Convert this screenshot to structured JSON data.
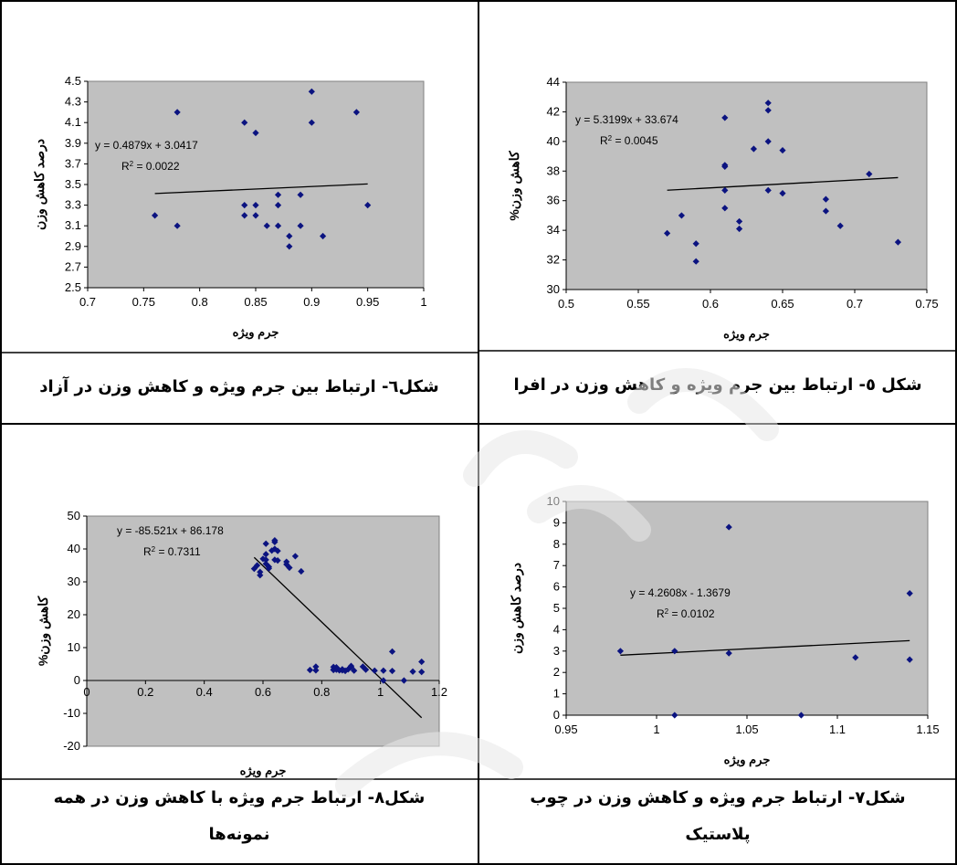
{
  "captions": {
    "p1": "شکل٦- ارتباط بین جرم ویژه و کاهش وزن در آزاد",
    "p2": "شکل ٥- ارتباط بین جرم ویژه و کاهش وزن در افرا",
    "p3_line1": "شکل٨- ارتباط جرم ویژه با کاهش وزن در همه",
    "p3_line2": "نمونه‌ها",
    "p4_line1": "شکل٧- ارتباط جرم ویژه و کاهش وزن در چوب",
    "p4_line2": "پلاستیک"
  },
  "chart_data": [
    {
      "id": "p1",
      "type": "scatter",
      "xlabel": "جرم ویژه",
      "ylabel": "درصد کاهش وزن",
      "xlim": [
        0.7,
        1
      ],
      "ylim": [
        2.5,
        4.5
      ],
      "xticks": [
        "0.7",
        "0.75",
        "0.8",
        "0.85",
        "0.9",
        "0.95",
        "1"
      ],
      "yticks": [
        "2.5",
        "2.7",
        "2.9",
        "3.1",
        "3.3",
        "3.5",
        "3.7",
        "3.9",
        "4.1",
        "4.3",
        "4.5"
      ],
      "trend_equation": "y = 0.4879x + 3.0417",
      "trend_r2_prefix": "R",
      "trend_r2_value": " = 0.0022",
      "trend": {
        "slope": 0.4879,
        "intercept": 3.0417,
        "x_start": 0.76,
        "x_end": 0.95
      },
      "points": [
        [
          0.76,
          3.2
        ],
        [
          0.78,
          4.2
        ],
        [
          0.78,
          3.1
        ],
        [
          0.84,
          4.1
        ],
        [
          0.84,
          3.3
        ],
        [
          0.84,
          3.2
        ],
        [
          0.85,
          4.0
        ],
        [
          0.85,
          3.3
        ],
        [
          0.85,
          3.2
        ],
        [
          0.86,
          3.1
        ],
        [
          0.87,
          3.4
        ],
        [
          0.87,
          3.3
        ],
        [
          0.87,
          3.1
        ],
        [
          0.88,
          3.0
        ],
        [
          0.88,
          2.9
        ],
        [
          0.89,
          3.4
        ],
        [
          0.89,
          3.1
        ],
        [
          0.9,
          4.4
        ],
        [
          0.9,
          4.1
        ],
        [
          0.91,
          3.0
        ],
        [
          0.94,
          4.2
        ],
        [
          0.95,
          3.3
        ]
      ]
    },
    {
      "id": "p2",
      "type": "scatter",
      "xlabel": "جرم ویژه",
      "ylabel": "کاهش وزن%",
      "xlim": [
        0.5,
        0.75
      ],
      "ylim": [
        30,
        44
      ],
      "xticks": [
        "0.5",
        "0.55",
        "0.6",
        "0.65",
        "0.7",
        "0.75"
      ],
      "yticks": [
        "30",
        "32",
        "34",
        "36",
        "38",
        "40",
        "42",
        "44"
      ],
      "trend_equation": "y = 5.3199x + 33.674",
      "trend_r2_prefix": "R",
      "trend_r2_value": " = 0.0045",
      "trend": {
        "slope": 5.3199,
        "intercept": 33.674,
        "x_start": 0.57,
        "x_end": 0.73
      },
      "points": [
        [
          0.57,
          33.8
        ],
        [
          0.58,
          35.0
        ],
        [
          0.59,
          33.1
        ],
        [
          0.59,
          31.9
        ],
        [
          0.61,
          41.6
        ],
        [
          0.61,
          38.4
        ],
        [
          0.61,
          38.3
        ],
        [
          0.61,
          36.7
        ],
        [
          0.61,
          35.5
        ],
        [
          0.62,
          34.6
        ],
        [
          0.62,
          34.1
        ],
        [
          0.63,
          39.5
        ],
        [
          0.64,
          42.6
        ],
        [
          0.64,
          42.1
        ],
        [
          0.64,
          40.0
        ],
        [
          0.64,
          36.7
        ],
        [
          0.65,
          39.4
        ],
        [
          0.65,
          36.5
        ],
        [
          0.68,
          36.1
        ],
        [
          0.68,
          35.3
        ],
        [
          0.69,
          34.3
        ],
        [
          0.71,
          37.8
        ],
        [
          0.73,
          33.2
        ]
      ]
    },
    {
      "id": "p3",
      "type": "scatter",
      "xlabel": "جرم ویژه",
      "ylabel": "کاهش وزن%",
      "xlim": [
        0,
        1.2
      ],
      "ylim": [
        -20,
        50
      ],
      "xticks": [
        "0",
        "0.2",
        "0.4",
        "0.6",
        "0.8",
        "1",
        "1.2"
      ],
      "yticks": [
        "-20",
        "-10",
        "0",
        "10",
        "20",
        "30",
        "40",
        "50"
      ],
      "trend_equation": "y = -85.521x + 86.178",
      "trend_r2_prefix": "R",
      "trend_r2_value": " = 0.7311",
      "trend": {
        "slope": -85.521,
        "intercept": 86.178,
        "x_start": 0.57,
        "x_end": 1.14
      },
      "points": [
        [
          0.57,
          34
        ],
        [
          0.58,
          35
        ],
        [
          0.59,
          33
        ],
        [
          0.59,
          32
        ],
        [
          0.6,
          37
        ],
        [
          0.61,
          41.6
        ],
        [
          0.61,
          38.4
        ],
        [
          0.61,
          36.7
        ],
        [
          0.61,
          35.5
        ],
        [
          0.62,
          34.6
        ],
        [
          0.62,
          34.1
        ],
        [
          0.63,
          39.5
        ],
        [
          0.64,
          42.6
        ],
        [
          0.64,
          42.1
        ],
        [
          0.64,
          40
        ],
        [
          0.64,
          36.7
        ],
        [
          0.65,
          39.4
        ],
        [
          0.65,
          36.5
        ],
        [
          0.68,
          36.1
        ],
        [
          0.68,
          35.3
        ],
        [
          0.69,
          34.3
        ],
        [
          0.71,
          37.8
        ],
        [
          0.73,
          33.2
        ],
        [
          0.76,
          3.2
        ],
        [
          0.78,
          4.2
        ],
        [
          0.78,
          3.1
        ],
        [
          0.84,
          4.1
        ],
        [
          0.84,
          3.3
        ],
        [
          0.84,
          3.2
        ],
        [
          0.85,
          4.0
        ],
        [
          0.85,
          3.3
        ],
        [
          0.86,
          3.1
        ],
        [
          0.87,
          3.4
        ],
        [
          0.87,
          3.1
        ],
        [
          0.88,
          3.0
        ],
        [
          0.88,
          2.9
        ],
        [
          0.89,
          3.4
        ],
        [
          0.9,
          4.4
        ],
        [
          0.9,
          4.1
        ],
        [
          0.91,
          3.0
        ],
        [
          0.94,
          4.2
        ],
        [
          0.95,
          3.3
        ],
        [
          0.98,
          3.0
        ],
        [
          1.01,
          3.0
        ],
        [
          1.01,
          0
        ],
        [
          1.04,
          8.8
        ],
        [
          1.04,
          2.9
        ],
        [
          1.08,
          0
        ],
        [
          1.11,
          2.7
        ],
        [
          1.14,
          5.7
        ],
        [
          1.14,
          2.6
        ]
      ]
    },
    {
      "id": "p4",
      "type": "scatter",
      "xlabel": "جرم ویژه",
      "ylabel": "درصد کاهش وزن",
      "xlim": [
        0.95,
        1.15
      ],
      "ylim": [
        0,
        10
      ],
      "xticks": [
        "0.95",
        "1",
        "1.05",
        "1.1",
        "1.15"
      ],
      "yticks": [
        "0",
        "1",
        "2",
        "3",
        "4",
        "5",
        "6",
        "7",
        "8",
        "9",
        "10"
      ],
      "trend_equation": "y = 4.2608x - 1.3679",
      "trend_r2_prefix": "R",
      "trend_r2_value": " = 0.0102",
      "trend": {
        "slope": 4.2608,
        "intercept": -1.3679,
        "x_start": 0.98,
        "x_end": 1.14
      },
      "points": [
        [
          0.98,
          3.0
        ],
        [
          1.01,
          3.0
        ],
        [
          1.01,
          0
        ],
        [
          1.04,
          8.8
        ],
        [
          1.04,
          2.9
        ],
        [
          1.08,
          0
        ],
        [
          1.11,
          2.7
        ],
        [
          1.14,
          5.7
        ],
        [
          1.14,
          2.6
        ]
      ]
    }
  ]
}
